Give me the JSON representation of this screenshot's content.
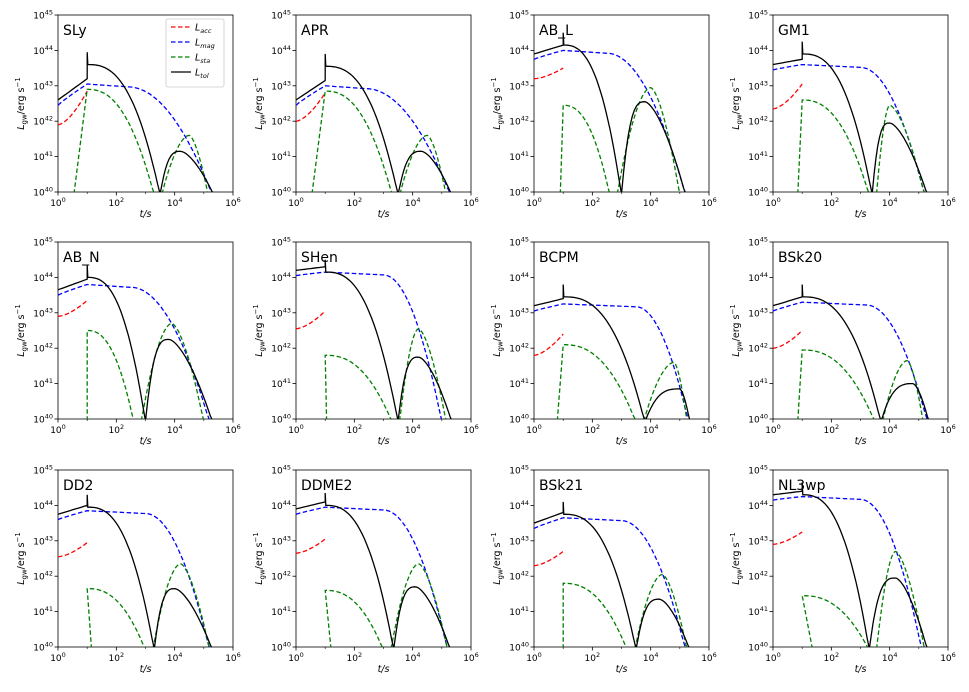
{
  "chart_data": {
    "type": "line",
    "layout": "3x4 panel grid",
    "x_axis": {
      "label": "t/s",
      "scale": "log",
      "range": [
        1,
        1000000
      ],
      "ticks": [
        {
          "base": "10",
          "exp": "0"
        },
        {
          "base": "10",
          "exp": "2"
        },
        {
          "base": "10",
          "exp": "4"
        },
        {
          "base": "10",
          "exp": "6"
        }
      ]
    },
    "y_axis": {
      "label": "L",
      "label_sub": "gw",
      "label_unit": "/erg s",
      "label_unit_exp": "−1",
      "scale": "log",
      "range": [
        1e+40,
        1e+45
      ],
      "ticks": [
        {
          "base": "10",
          "exp": "40"
        },
        {
          "base": "10",
          "exp": "41"
        },
        {
          "base": "10",
          "exp": "42"
        },
        {
          "base": "10",
          "exp": "43"
        },
        {
          "base": "10",
          "exp": "44"
        },
        {
          "base": "10",
          "exp": "45"
        }
      ]
    },
    "series_styles": [
      {
        "key": "acc",
        "name": "L",
        "sub": "acc",
        "color": "#ff0000",
        "dash": true
      },
      {
        "key": "mag",
        "name": "L",
        "sub": "mag",
        "color": "#0000ff",
        "dash": true
      },
      {
        "key": "sta",
        "name": "L",
        "sub": "sta",
        "color": "#008000",
        "dash": true
      },
      {
        "key": "tol",
        "name": "L",
        "sub": "tol",
        "color": "#000000",
        "dash": false
      }
    ],
    "legend_position": "top-right of first panel",
    "panels": [
      {
        "title": "SLy",
        "acc": [
          41.9,
          42.85
        ],
        "mag": [
          42.45,
          43.05,
          0.55,
          2.4,
          5.3
        ],
        "sta": [
          42.9,
          0.55,
          3.3,
          4.5,
          41.6,
          5.15
        ],
        "tol": [
          43.6,
          0.55,
          3.5,
          41.15,
          4.2,
          5.35
        ]
      },
      {
        "title": "APR",
        "acc": [
          42.0,
          42.8
        ],
        "mag": [
          42.45,
          43.0,
          0.6,
          2.4,
          5.3
        ],
        "sta": [
          42.85,
          0.55,
          3.3,
          4.5,
          41.6,
          5.15
        ],
        "tol": [
          43.55,
          0.55,
          3.5,
          41.15,
          4.3,
          5.35
        ]
      },
      {
        "title": "AB_L",
        "acc": [
          43.2,
          43.5
        ],
        "mag": [
          43.75,
          44.0,
          0.45,
          2.5,
          5.2
        ],
        "sta": [
          42.45,
          0.9,
          2.6,
          4.0,
          42.95,
          5.0
        ],
        "tol": [
          44.15,
          0.45,
          3.0,
          42.55,
          3.8,
          5.2
        ]
      },
      {
        "title": "GM1",
        "acc": [
          42.35,
          43.05
        ],
        "mag": [
          43.45,
          43.6,
          0.6,
          3.0,
          5.2
        ],
        "sta": [
          42.6,
          0.85,
          3.3,
          4.0,
          42.45,
          5.2
        ],
        "tol": [
          43.9,
          0.55,
          3.4,
          41.95,
          4.0,
          5.3
        ]
      },
      {
        "title": "AB_N",
        "acc": [
          42.9,
          43.35
        ],
        "mag": [
          43.5,
          43.8,
          0.55,
          2.5,
          5.2
        ],
        "sta": [
          42.5,
          1.0,
          2.6,
          3.9,
          42.7,
          5.0
        ],
        "tol": [
          44.0,
          0.55,
          3.0,
          42.25,
          3.8,
          5.3
        ]
      },
      {
        "title": "SHen",
        "acc": [
          42.55,
          43.05
        ],
        "mag": [
          44.05,
          44.15,
          0.75,
          3.0,
          5.0
        ],
        "sta": [
          41.8,
          1.05,
          3.3,
          4.2,
          42.55,
          5.15
        ],
        "tol": [
          44.15,
          0.75,
          3.5,
          41.75,
          4.2,
          5.35
        ]
      },
      {
        "title": "BCPM",
        "acc": [
          41.8,
          42.4
        ],
        "mag": [
          43.05,
          43.25,
          0.7,
          3.5,
          5.3
        ],
        "sta": [
          42.1,
          0.8,
          3.5,
          4.8,
          41.6,
          5.25
        ],
        "tol": [
          43.45,
          0.65,
          3.8,
          40.85,
          5.0,
          5.35
        ]
      },
      {
        "title": "BSk20",
        "acc": [
          42.0,
          42.5
        ],
        "mag": [
          43.05,
          43.3,
          0.7,
          3.2,
          5.3
        ],
        "sta": [
          41.95,
          0.85,
          3.5,
          4.6,
          41.65,
          5.15
        ],
        "tol": [
          43.45,
          0.65,
          3.7,
          41.0,
          4.8,
          5.35
        ]
      },
      {
        "title": "DD2",
        "acc": [
          42.55,
          42.95
        ],
        "mag": [
          43.6,
          43.85,
          0.6,
          3.0,
          5.2
        ],
        "sta": [
          41.65,
          1.15,
          3.0,
          4.2,
          42.35,
          5.2
        ],
        "tol": [
          43.95,
          0.6,
          3.3,
          41.65,
          4.0,
          5.3
        ]
      },
      {
        "title": "DDME2",
        "acc": [
          42.65,
          43.05
        ],
        "mag": [
          43.75,
          43.95,
          0.6,
          3.0,
          5.2
        ],
        "sta": [
          41.6,
          1.2,
          3.0,
          4.2,
          42.35,
          5.2
        ],
        "tol": [
          44.0,
          0.6,
          3.35,
          41.7,
          4.1,
          5.3
        ]
      },
      {
        "title": "BSk21",
        "acc": [
          42.3,
          42.7
        ],
        "mag": [
          43.35,
          43.65,
          0.6,
          3.0,
          5.2
        ],
        "sta": [
          41.8,
          1.0,
          3.2,
          4.4,
          42.05,
          5.25
        ],
        "tol": [
          43.75,
          0.6,
          3.5,
          41.35,
          4.3,
          5.35
        ]
      },
      {
        "title": "NL3wp",
        "acc": [
          42.9,
          43.25
        ],
        "mag": [
          44.15,
          44.25,
          0.8,
          3.0,
          5.1
        ],
        "sta": [
          41.45,
          1.35,
          3.3,
          4.2,
          42.7,
          5.2
        ],
        "tol": [
          44.3,
          0.8,
          3.3,
          41.95,
          4.2,
          5.3
        ]
      }
    ],
    "panel_value_notes": "acc: [log10 L at t=1 s, log10 L at t=10 s]; mag: [log L at 1 s, plateau log L, log-time start, log-time knee, log-time end]; sta: [plateau log L, log-time start, log-time end of first lobe, log-time second lobe peak, second lobe peak log L, log-time end]; tol: [plateau log L, log-time onset, log-time of dip, second peak log L, log-time of second peak, log-time end]"
  }
}
